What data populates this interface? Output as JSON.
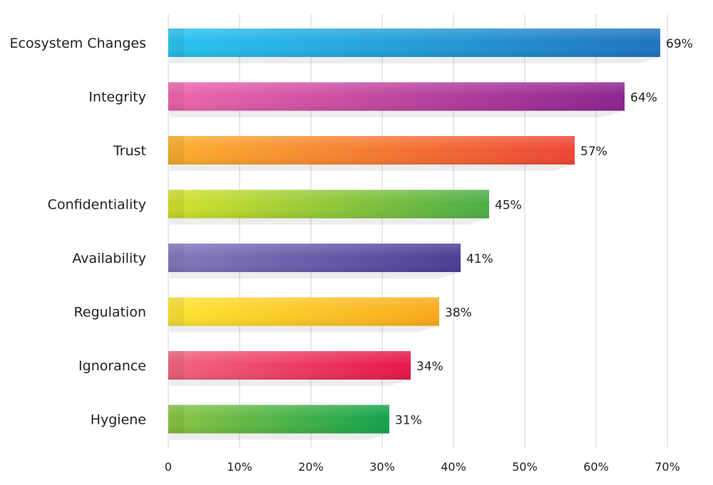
{
  "chart_data": {
    "type": "bar",
    "orientation": "horizontal",
    "categories": [
      "Ecosystem Changes",
      "Integrity",
      "Trust",
      "Confidentiality",
      "Availability",
      "Regulation",
      "Ignorance",
      "Hygiene"
    ],
    "values": [
      69,
      64,
      57,
      45,
      41,
      38,
      34,
      31
    ],
    "value_labels": [
      "69%",
      "64%",
      "57%",
      "45%",
      "41%",
      "38%",
      "34%",
      "31%"
    ],
    "xlim": [
      0,
      70
    ],
    "xticks": [
      0,
      10,
      20,
      30,
      40,
      50,
      60,
      70
    ],
    "xtick_labels": [
      "0",
      "10%",
      "20%",
      "30%",
      "40%",
      "50%",
      "60%",
      "70%"
    ],
    "grid": "vertical",
    "title": "",
    "xlabel": "",
    "ylabel": "",
    "bar_colors": [
      [
        "#29c4f0",
        "#1e73be"
      ],
      [
        "#ef66ad",
        "#8c2490"
      ],
      [
        "#fbb02d",
        "#ee4536"
      ],
      [
        "#d6e22a",
        "#4aad47"
      ],
      [
        "#8479bc",
        "#4b3c95"
      ],
      [
        "#fde533",
        "#f9a91b"
      ],
      [
        "#f2657f",
        "#e6164a"
      ],
      [
        "#8bc540",
        "#12a24c"
      ]
    ]
  }
}
